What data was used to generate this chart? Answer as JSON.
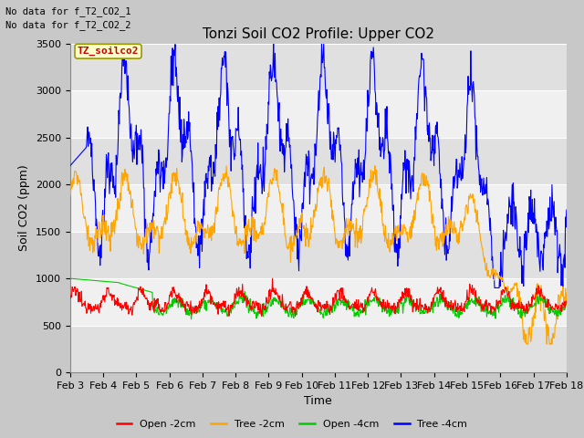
{
  "title": "Tonzi Soil CO2 Profile: Upper CO2",
  "xlabel": "Time",
  "ylabel": "Soil CO2 (ppm)",
  "no_data_text_1": "No data for f_T2_CO2_1",
  "no_data_text_2": "No data for f_T2_CO2_2",
  "legend_label_text": "TZ_soilco2",
  "legend_entries": [
    "Open -2cm",
    "Tree -2cm",
    "Open -4cm",
    "Tree -4cm"
  ],
  "legend_colors": [
    "#ff0000",
    "#ffa500",
    "#00cc00",
    "#0000ff"
  ],
  "ylim": [
    0,
    3500
  ],
  "yticks": [
    0,
    500,
    1000,
    1500,
    2000,
    2500,
    3000,
    3500
  ],
  "x_tick_labels": [
    "Feb 3",
    "Feb 4",
    "Feb 5",
    "Feb 6",
    "Feb 7",
    "Feb 8",
    "Feb 9",
    "Feb 10",
    "Feb 11",
    "Feb 12",
    "Feb 13",
    "Feb 14",
    "Feb 15",
    "Feb 16",
    "Feb 17",
    "Feb 18"
  ],
  "fig_bg_color": "#c8c8c8",
  "plot_bg_color": "#ffffff",
  "band_color_dark": "#e0e0e0",
  "band_color_light": "#f0f0f0",
  "title_fontsize": 11,
  "axis_label_fontsize": 9,
  "tick_fontsize": 8,
  "legend_fontsize": 8
}
